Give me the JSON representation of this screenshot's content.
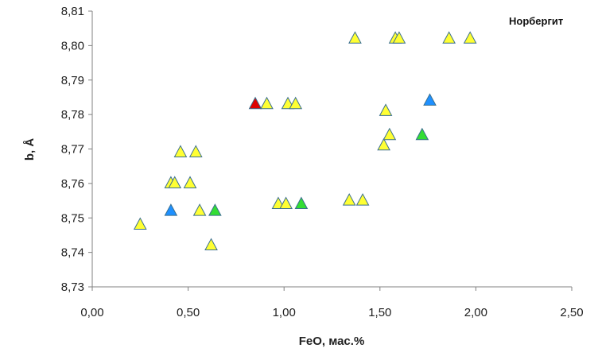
{
  "chart_data": {
    "type": "scatter",
    "title": "Норбергит",
    "xlabel": "FeO, мас.%",
    "ylabel": "b, Å",
    "xlim": [
      0,
      2.5
    ],
    "ylim": [
      8.73,
      8.81
    ],
    "x_ticks": [
      "0,00",
      "0,50",
      "1,00",
      "1,50",
      "2,00",
      "2,50"
    ],
    "y_ticks": [
      "8,73",
      "8,74",
      "8,75",
      "8,76",
      "8,77",
      "8,78",
      "8,79",
      "8,80",
      "8,81"
    ],
    "grid": false,
    "marker": "triangle",
    "series": [
      {
        "color": "#ffff33",
        "points": [
          [
            0.25,
            8.748
          ],
          [
            0.41,
            8.76
          ],
          [
            0.43,
            8.76
          ],
          [
            0.46,
            8.769
          ],
          [
            0.51,
            8.76
          ],
          [
            0.54,
            8.769
          ],
          [
            0.56,
            8.752
          ],
          [
            0.62,
            8.742
          ],
          [
            0.91,
            8.783
          ],
          [
            0.97,
            8.754
          ],
          [
            1.01,
            8.754
          ],
          [
            1.02,
            8.783
          ],
          [
            1.06,
            8.783
          ],
          [
            1.34,
            8.755
          ],
          [
            1.37,
            8.802
          ],
          [
            1.41,
            8.755
          ],
          [
            1.52,
            8.771
          ],
          [
            1.53,
            8.781
          ],
          [
            1.55,
            8.774
          ],
          [
            1.58,
            8.802
          ],
          [
            1.6,
            8.802
          ],
          [
            1.86,
            8.802
          ],
          [
            1.97,
            8.802
          ]
        ]
      },
      {
        "color": "#1e90ff",
        "points": [
          [
            0.41,
            8.752
          ],
          [
            1.76,
            8.784
          ]
        ]
      },
      {
        "color": "#33dd33",
        "points": [
          [
            0.64,
            8.752
          ],
          [
            1.09,
            8.754
          ],
          [
            1.72,
            8.774
          ]
        ]
      },
      {
        "color": "#dd0000",
        "points": [
          [
            0.85,
            8.783
          ]
        ]
      }
    ]
  }
}
